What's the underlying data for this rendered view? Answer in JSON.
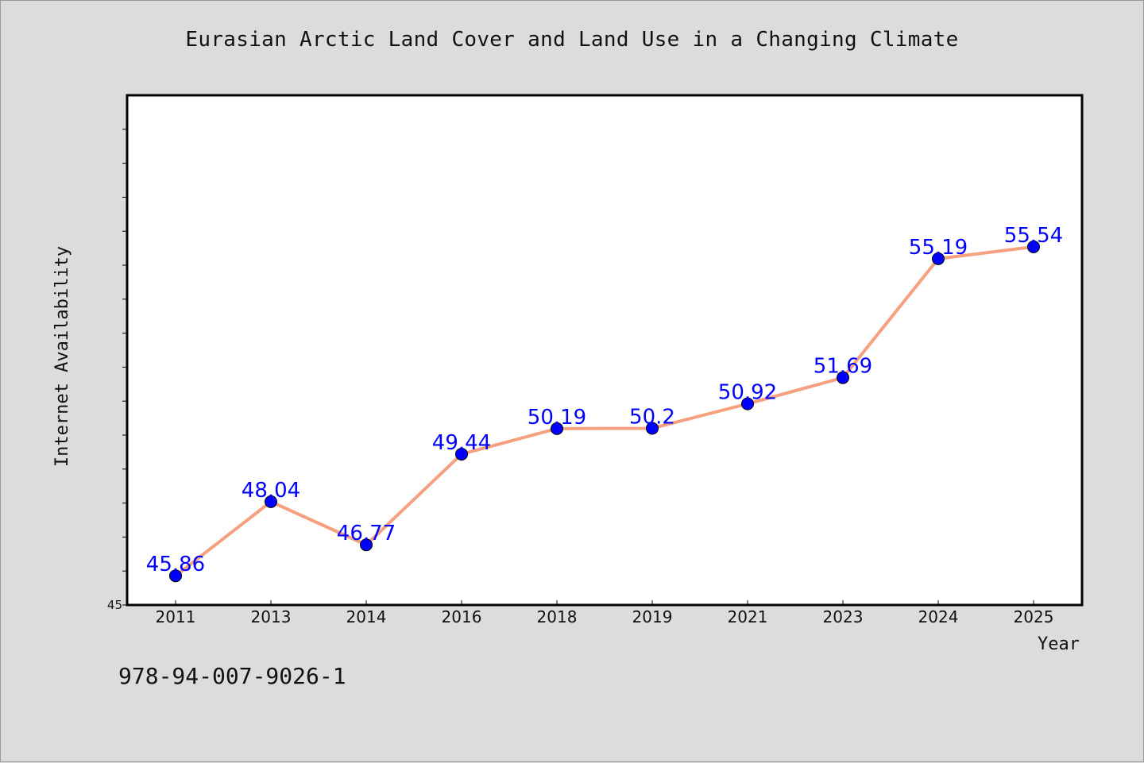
{
  "chart_data": {
    "type": "line",
    "title": "Eurasian Arctic Land Cover and Land Use in a Changing Climate",
    "xlabel": "Year",
    "ylabel": "Internet Availability",
    "categories": [
      "2011",
      "2013",
      "2014",
      "2016",
      "2018",
      "2019",
      "2021",
      "2023",
      "2024",
      "2025"
    ],
    "series": [
      {
        "values": [
          45.86,
          48.04,
          46.77,
          49.44,
          50.19,
          50.2,
          50.92,
          51.69,
          55.19,
          55.54
        ],
        "labels": [
          "45.86",
          "48.04",
          "46.77",
          "49.44",
          "50.19",
          "50.2",
          "50.92",
          "51.69",
          "55.19",
          "55.54"
        ],
        "line_color": "#f5a07f",
        "marker_color": "#0000ff",
        "label_color": "#0000ff"
      }
    ],
    "ylim": [
      45,
      60
    ],
    "y_tick_labels": [
      "45"
    ],
    "grid": false
  },
  "footer": {
    "isbn": "978-94-007-9026-1"
  }
}
